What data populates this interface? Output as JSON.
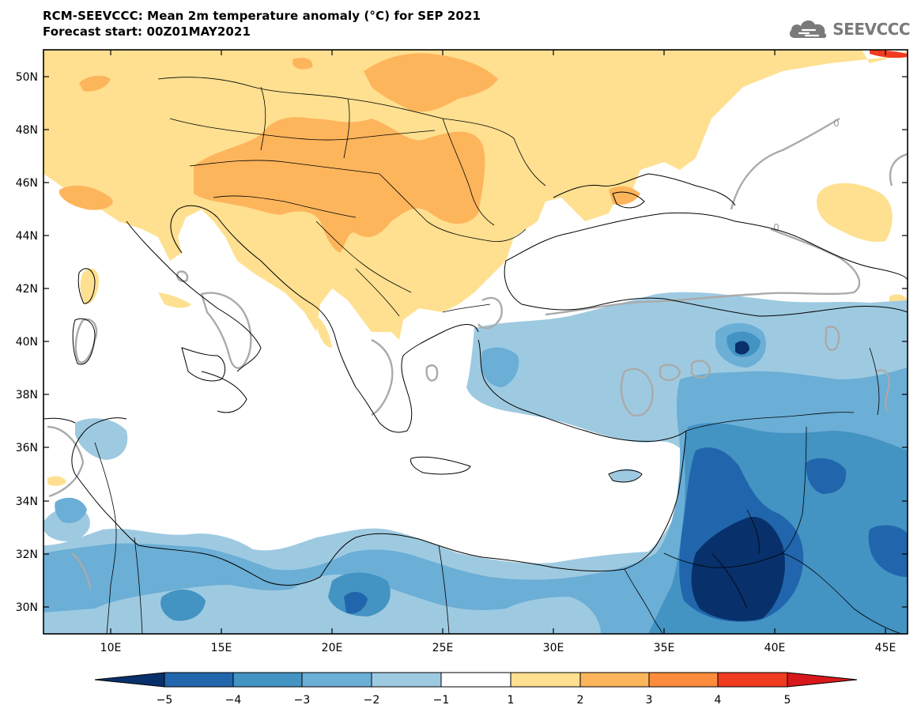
{
  "header": {
    "title_line1": "RCM-SEEVCCC: Mean 2m temperature anomaly (°C) for SEP 2021",
    "title_line2": "Forecast start: 00Z01MAY2021"
  },
  "logo": {
    "text": "SEEVCCC",
    "icon": "cloud-icon"
  },
  "map": {
    "lon_ticks": [
      "10E",
      "15E",
      "20E",
      "25E",
      "30E",
      "35E",
      "40E",
      "45E"
    ],
    "lat_ticks": [
      "50N",
      "48N",
      "46N",
      "44N",
      "42N",
      "40N",
      "38N",
      "36N",
      "34N",
      "32N",
      "30N"
    ],
    "contour_label": "0"
  },
  "colorbar": {
    "labels": [
      "−5",
      "−4",
      "−3",
      "−2",
      "−1",
      "1",
      "2",
      "3",
      "4",
      "5"
    ],
    "colors": [
      "#08306b",
      "#2166ac",
      "#4393c3",
      "#6baed6",
      "#9ecae1",
      "#ffffff",
      "#fee090",
      "#fdb55c",
      "#fd8d3c",
      "#f03b20",
      "#d7191c"
    ]
  },
  "palette": {
    "warm1": "#fddb7e",
    "warm2": "#fdb55c",
    "cold1": "#9ecae1",
    "cold2": "#6baed6",
    "cold3": "#4393c3",
    "cold4": "#2166ac",
    "cold5": "#08306b",
    "contour_zero": "#aaaaaa",
    "coastline": "#000000"
  }
}
